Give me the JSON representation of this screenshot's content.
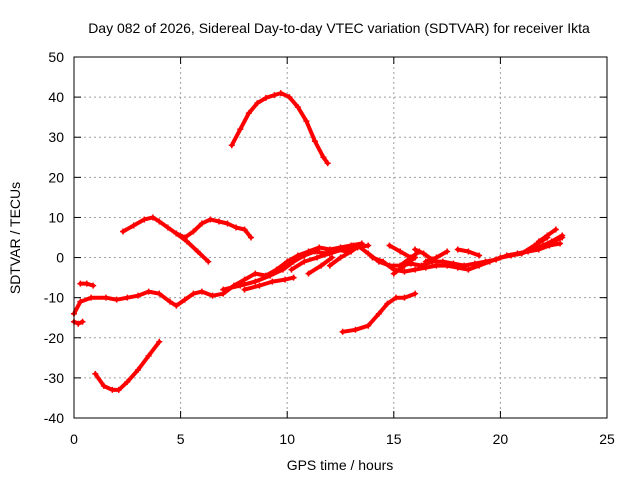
{
  "chart_data": {
    "type": "line",
    "title": "Day 082 of 2026, Sidereal Day-to-day VTEC variation (SDTVAR) for receiver Ikta",
    "xlabel": "GPS time / hours",
    "ylabel": "SDTVAR / TECUs",
    "xlim": [
      0,
      25
    ],
    "ylim": [
      -40,
      50
    ],
    "xticks": [
      0,
      5,
      10,
      15,
      20,
      25
    ],
    "yticks": [
      -40,
      -30,
      -20,
      -10,
      0,
      10,
      20,
      30,
      40,
      50
    ],
    "grid": true,
    "legend": "none",
    "series_color": "#ff0000",
    "series": [
      {
        "name": "arc-peak-40",
        "x": [
          7.4,
          7.8,
          8.2,
          8.6,
          9.0,
          9.4,
          9.7,
          10.1,
          10.5,
          10.9,
          11.3,
          11.7,
          11.9
        ],
        "y": [
          28,
          32,
          36,
          38.5,
          39.8,
          40.5,
          41,
          40,
          37.5,
          34,
          29,
          25,
          23.5
        ]
      },
      {
        "name": "arc-hump-10",
        "x": [
          2.3,
          2.8,
          3.3,
          3.7,
          4.0,
          4.4,
          4.8,
          5.2,
          5.6,
          6.0,
          6.4,
          6.8,
          7.2,
          7.6,
          8.0,
          8.3
        ],
        "y": [
          6.5,
          8,
          9.5,
          10,
          9,
          7.5,
          6,
          5,
          6.5,
          8.5,
          9.5,
          9,
          8.5,
          7.5,
          7,
          5
        ]
      },
      {
        "name": "arc-hump-branch",
        "x": [
          4.8,
          5.3,
          5.8,
          6.3
        ],
        "y": [
          6,
          4,
          1.5,
          -1
        ]
      },
      {
        "name": "arc-trough-33",
        "x": [
          1.0,
          1.4,
          1.8,
          2.1,
          2.5,
          3.0,
          3.5,
          4.0
        ],
        "y": [
          -29,
          -32,
          -33,
          -33,
          -31,
          -28,
          -24.5,
          -21
        ]
      },
      {
        "name": "arc-rise-right",
        "x": [
          12.6,
          13.2,
          13.8,
          14.3,
          14.7,
          15.1,
          15.5,
          16.0
        ],
        "y": [
          -18.5,
          -18,
          -17,
          -14,
          -11.5,
          -10,
          -10,
          -9
        ]
      },
      {
        "name": "arc-main-band-a",
        "x": [
          0.0,
          0.3,
          0.8,
          1.5,
          2.0,
          2.5,
          3.0,
          3.5,
          4.0,
          4.5,
          4.8,
          5.2,
          5.6,
          6.0,
          6.5,
          7.0,
          7.5,
          8.0,
          8.5,
          9.0,
          9.5,
          10.0,
          10.5,
          11.0,
          11.5,
          12.0,
          12.5,
          13.0,
          13.5
        ],
        "y": [
          -14,
          -11,
          -10,
          -10,
          -10.5,
          -10,
          -9.5,
          -8.5,
          -9,
          -11,
          -12,
          -10.5,
          -9,
          -8.5,
          -9.5,
          -9,
          -7,
          -5.5,
          -4,
          -4.5,
          -3,
          -1,
          0.5,
          1.5,
          2.5,
          2,
          2.5,
          3,
          3.5
        ]
      },
      {
        "name": "arc-main-band-b",
        "x": [
          7.0,
          7.8,
          8.5,
          9.2,
          9.8,
          10.3,
          10.8,
          11.3,
          11.8,
          12.3,
          12.8,
          13.3,
          13.8
        ],
        "y": [
          -8,
          -7,
          -6,
          -4.5,
          -3,
          -1,
          0.5,
          1.5,
          1,
          2,
          1.5,
          2.5,
          3
        ]
      },
      {
        "name": "arc-main-band-c",
        "x": [
          8.0,
          8.7,
          9.3,
          9.9,
          10.3
        ],
        "y": [
          -8,
          -7,
          -6,
          -5.5,
          -5
        ]
      },
      {
        "name": "arc-main-band-d",
        "x": [
          10.2,
          10.8,
          11.4,
          12.0,
          12.6,
          13.1
        ],
        "y": [
          -3,
          -1,
          0,
          1,
          2,
          3
        ]
      },
      {
        "name": "arc-main-band-e",
        "x": [
          11.0,
          11.6,
          12.1
        ],
        "y": [
          -4,
          -2,
          0
        ]
      },
      {
        "name": "arc-main-band-f",
        "x": [
          12.0,
          12.5,
          13.0,
          13.4
        ],
        "y": [
          -2,
          0,
          1.5,
          3
        ]
      },
      {
        "name": "arc-upper-left",
        "x": [
          0.3,
          0.6,
          0.9
        ],
        "y": [
          -6.5,
          -6.5,
          -7
        ]
      },
      {
        "name": "arc-low-left",
        "x": [
          0.0,
          0.2,
          0.4
        ],
        "y": [
          -16,
          -16.5,
          -16
        ]
      },
      {
        "name": "arc-tail-a",
        "x": [
          13.3,
          13.8,
          14.3,
          14.8,
          15.3,
          15.8,
          16.3,
          16.8,
          17.3,
          17.8,
          18.3,
          18.8,
          19.3,
          19.8,
          20.3,
          20.8,
          21.3,
          21.8,
          22.3,
          22.8
        ],
        "y": [
          3,
          1,
          -1,
          -2,
          -2,
          -1.5,
          -2,
          -1,
          -1,
          -1.5,
          -2,
          -1.5,
          -1,
          -0.5,
          0.5,
          1,
          1.5,
          2,
          3,
          3.5
        ]
      },
      {
        "name": "arc-tail-b",
        "x": [
          14.0,
          14.5,
          15.0,
          15.5,
          16.0,
          16.5,
          17.0,
          17.5,
          18.0,
          18.5,
          19.0,
          19.5,
          20.0,
          20.5,
          21.0,
          21.5,
          22.0,
          22.5,
          22.9
        ],
        "y": [
          0,
          -1,
          -3,
          -3.5,
          -3,
          -2.5,
          -2,
          -2,
          -2.5,
          -3,
          -2,
          -1,
          0,
          0.5,
          1,
          2,
          3,
          4,
          5
        ]
      },
      {
        "name": "arc-tail-c",
        "x": [
          14.8,
          15.3,
          15.8
        ],
        "y": [
          3,
          1.5,
          0
        ]
      },
      {
        "name": "arc-tail-d",
        "x": [
          15.3,
          15.8,
          16.2
        ],
        "y": [
          -2,
          0,
          1.5
        ]
      },
      {
        "name": "arc-tail-e",
        "x": [
          15.0,
          15.5,
          16.0
        ],
        "y": [
          -4,
          -2,
          0
        ]
      },
      {
        "name": "arc-tail-f",
        "x": [
          16.0,
          16.4,
          16.8
        ],
        "y": [
          2,
          1,
          -0.5
        ]
      },
      {
        "name": "arc-tail-g",
        "x": [
          16.5,
          17.0,
          17.5
        ],
        "y": [
          -1,
          0,
          1.5
        ]
      },
      {
        "name": "arc-tail-h",
        "x": [
          18.0,
          18.5,
          19.0
        ],
        "y": [
          2,
          1.5,
          0.5
        ]
      },
      {
        "name": "arc-tail-i",
        "x": [
          21.0,
          21.6,
          22.2
        ],
        "y": [
          1,
          3,
          5
        ]
      },
      {
        "name": "arc-tail-j",
        "x": [
          21.8,
          22.2,
          22.6
        ],
        "y": [
          4,
          5.5,
          7
        ]
      },
      {
        "name": "arc-tail-k",
        "x": [
          22.0,
          22.4,
          22.9
        ],
        "y": [
          3,
          4,
          5.5
        ]
      }
    ]
  }
}
